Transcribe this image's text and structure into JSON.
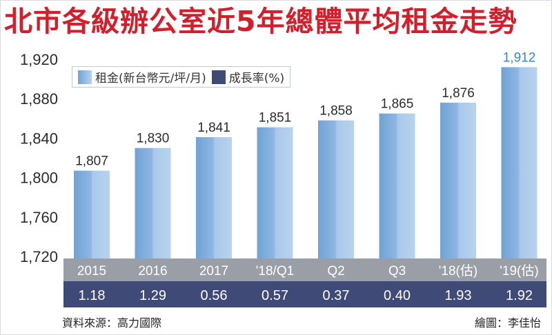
{
  "title": "北市各級辦公室近5年總體平均租金走勢",
  "chart_data": {
    "type": "bar",
    "title": "北市各級辦公室近5年總體平均租金走勢",
    "categories": [
      "2015",
      "2016",
      "2017",
      "'18/Q1",
      "Q2",
      "Q3",
      "'18(估)",
      "'19(估)"
    ],
    "series": [
      {
        "name": "租金(新台幣元/坪/月)",
        "values": [
          1807,
          1830,
          1841,
          1851,
          1858,
          1865,
          1876,
          1912
        ],
        "labels": [
          "1,807",
          "1,830",
          "1,841",
          "1,851",
          "1,858",
          "1,865",
          "1,876",
          "1,912"
        ]
      },
      {
        "name": "成長率(%)",
        "values": [
          1.18,
          1.29,
          0.56,
          0.57,
          0.37,
          0.4,
          1.93,
          1.92
        ],
        "labels": [
          "1.18",
          "1.29",
          "0.56",
          "0.57",
          "0.37",
          "0.40",
          "1.93",
          "1.92"
        ]
      }
    ],
    "ylim": [
      1720,
      1920
    ],
    "yticks": [
      1720,
      1760,
      1800,
      1840,
      1880,
      1920
    ],
    "ytick_labels": [
      "1,720",
      "1,760",
      "1,800",
      "1,840",
      "1,880",
      "1,920"
    ],
    "xlabel": "",
    "ylabel": "",
    "grid": false,
    "legend_position": "top-left",
    "colors": {
      "bar_dark": "#6fa2d6",
      "bar_light": "#b9d3ee",
      "category_band": "#9a9ea6",
      "growth_band": "#3f4a77",
      "title": "#d21f2b",
      "highlight_label": "#3c86c6"
    }
  },
  "legend": {
    "rent": "租金(新台幣元/坪/月)",
    "growth": "成長率(%)"
  },
  "footer": {
    "source": "資料來源：高力國際",
    "credit": "繪圖：李佳怡"
  }
}
